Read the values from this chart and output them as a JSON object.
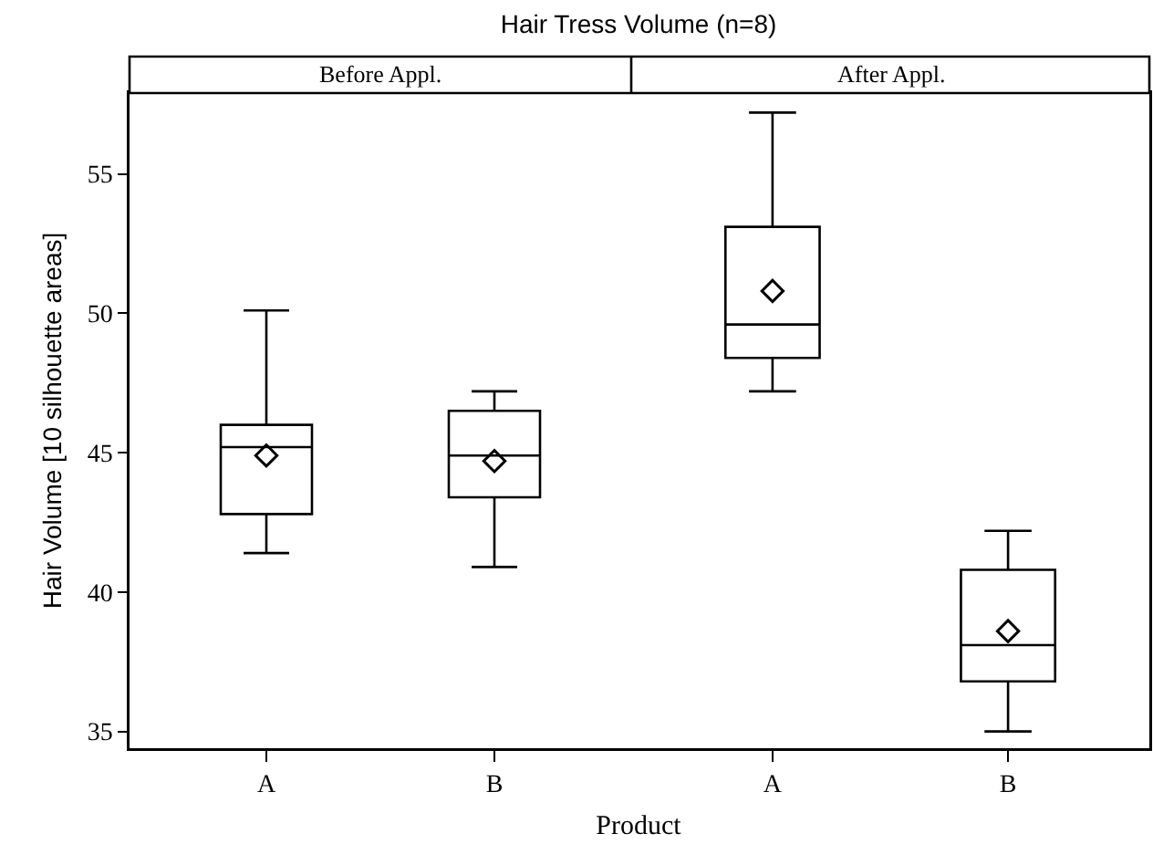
{
  "chart_data": [
    {
      "type": "box",
      "title": "Hair Tress Volume (n=8)",
      "subtitle": "Before Appl.",
      "xlabel": "Product",
      "ylabel": "Hair Volume [10 silhouette areas]",
      "categories": [
        "A",
        "B"
      ],
      "ylim": [
        34.4,
        57.9
      ],
      "yticks": [
        35,
        40,
        45,
        50,
        55
      ],
      "marker": "diamond",
      "boxes": [
        {
          "low": 41.4,
          "q1": 42.8,
          "median": 45.2,
          "q3": 46.0,
          "high": 50.1,
          "mean": 44.9
        },
        {
          "low": 40.9,
          "q1": 43.4,
          "median": 44.9,
          "q3": 46.5,
          "high": 47.2,
          "mean": 44.7
        }
      ]
    },
    {
      "type": "box",
      "subtitle": "After Appl.",
      "categories": [
        "A",
        "B"
      ],
      "ylim": [
        34.4,
        57.9
      ],
      "yticks": [
        35,
        40,
        45,
        50,
        55
      ],
      "tick_labels": "x",
      "marker": "diamond",
      "boxes": [
        {
          "low": 47.2,
          "q1": 48.4,
          "median": 49.6,
          "q3": 53.1,
          "high": 57.2,
          "mean": 50.8
        },
        {
          "low": 35.0,
          "q1": 36.8,
          "median": 38.1,
          "q3": 40.8,
          "high": 42.2,
          "mean": 38.6
        }
      ]
    }
  ]
}
